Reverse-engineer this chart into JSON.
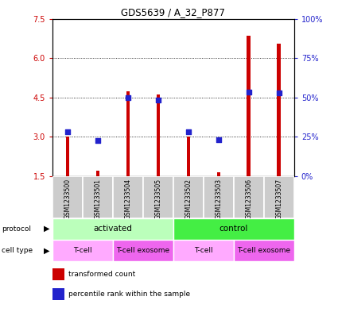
{
  "title": "GDS5639 / A_32_P877",
  "samples": [
    "GSM1233500",
    "GSM1233501",
    "GSM1233504",
    "GSM1233505",
    "GSM1233502",
    "GSM1233503",
    "GSM1233506",
    "GSM1233507"
  ],
  "bar_heights": [
    3.02,
    1.72,
    4.75,
    4.62,
    3.02,
    1.65,
    6.85,
    6.55
  ],
  "bar_base": 1.5,
  "blue_dots": [
    3.2,
    2.85,
    4.48,
    4.4,
    3.18,
    2.88,
    4.72,
    4.68
  ],
  "ylim_left": [
    1.5,
    7.5
  ],
  "yticks_left": [
    1.5,
    3.0,
    4.5,
    6.0,
    7.5
  ],
  "ylim_right": [
    0,
    100
  ],
  "yticks_right": [
    0,
    25,
    50,
    75,
    100
  ],
  "yticklabels_right": [
    "0%",
    "25%",
    "50%",
    "75%",
    "100%"
  ],
  "bar_color": "#cc0000",
  "dot_color": "#2222cc",
  "grid_color": "#000000",
  "protocol_groups": [
    {
      "label": "activated",
      "start": 0,
      "end": 4,
      "color": "#bbffbb"
    },
    {
      "label": "control",
      "start": 4,
      "end": 8,
      "color": "#44ee44"
    }
  ],
  "cell_type_groups": [
    {
      "label": "T-cell",
      "start": 0,
      "end": 2,
      "color": "#ffaaff"
    },
    {
      "label": "T-cell exosome",
      "start": 2,
      "end": 4,
      "color": "#ee66ee"
    },
    {
      "label": "T-cell",
      "start": 4,
      "end": 6,
      "color": "#ffaaff"
    },
    {
      "label": "T-cell exosome",
      "start": 6,
      "end": 8,
      "color": "#ee66ee"
    }
  ],
  "legend_items": [
    {
      "label": "transformed count",
      "color": "#cc0000"
    },
    {
      "label": "percentile rank within the sample",
      "color": "#2222cc"
    }
  ],
  "left_axis_color": "#cc0000",
  "right_axis_color": "#2222cc",
  "background_color": "#ffffff",
  "plot_bg": "#ffffff",
  "label_bg": "#cccccc",
  "bar_width": 0.12
}
